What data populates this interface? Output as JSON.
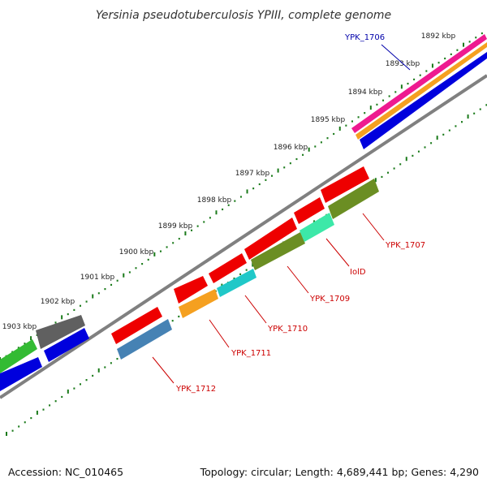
{
  "title": "Yersinia pseudotuberculosis YPIII, complete genome",
  "footer": {
    "accession": "Accession: NC_010465",
    "topology": "Topology: circular; Length: 4,689,441 bp; Genes: 4,290"
  },
  "colors": {
    "backbone": "#808080",
    "tick": "#1a7a1a",
    "label_red": "#cc0000",
    "label_blue": "#0000aa"
  },
  "scale_ticks": [
    {
      "label": "1892 kbp"
    },
    {
      "label": "1893 kbp"
    },
    {
      "label": "1894 kbp"
    },
    {
      "label": "1895 kbp"
    },
    {
      "label": "1896 kbp"
    },
    {
      "label": "1897 kbp"
    },
    {
      "label": "1898 kbp"
    },
    {
      "label": "1899 kbp"
    },
    {
      "label": "1900 kbp"
    },
    {
      "label": "1901 kbp"
    },
    {
      "label": "1902 kbp"
    },
    {
      "label": "1903 kbp"
    }
  ],
  "gene_labels": [
    {
      "text": "YPK_1706",
      "color": "#0000aa"
    },
    {
      "text": "YPK_1707",
      "color": "#cc0000"
    },
    {
      "text": "IolD",
      "color": "#cc0000"
    },
    {
      "text": "YPK_1709",
      "color": "#cc0000"
    },
    {
      "text": "YPK_1710",
      "color": "#cc0000"
    },
    {
      "text": "YPK_1711",
      "color": "#cc0000"
    },
    {
      "text": "YPK_1712",
      "color": "#cc0000"
    }
  ]
}
